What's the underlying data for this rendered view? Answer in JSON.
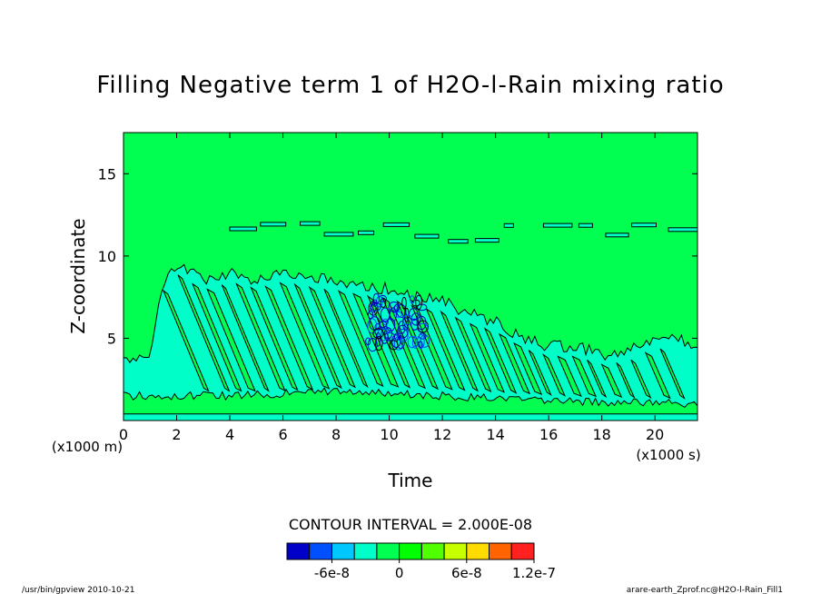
{
  "chart_data": {
    "type": "heatmap",
    "title": "Filling Negative term 1 of H2O-l-Rain mixing ratio",
    "xlabel": "Time",
    "ylabel": "Z-coordinate",
    "x_unit_label": "(x1000 s)",
    "y_unit_label": "(x1000 m)",
    "xlim": [
      0,
      21.6
    ],
    "ylim": [
      0,
      17.5
    ],
    "x_ticks": [
      0,
      2,
      4,
      6,
      8,
      10,
      12,
      14,
      16,
      18,
      20
    ],
    "y_ticks": [
      5,
      10,
      15
    ],
    "contour_interval_text": "CONTOUR INTERVAL = 2.000E-08",
    "colorbar": {
      "bins": [
        -1e-07,
        -8e-08,
        -6e-08,
        -4e-08,
        -2e-08,
        0,
        2e-08,
        4e-08,
        6e-08,
        8e-08,
        1e-07,
        1.2e-07
      ],
      "colors": [
        "#0000c8",
        "#0050ff",
        "#00c8ff",
        "#00ffc8",
        "#00ff50",
        "#00ff00",
        "#50ff00",
        "#c8ff00",
        "#ffdc00",
        "#ff6400",
        "#ff2020"
      ],
      "tick_labels": [
        "-6e-8",
        "0",
        "6e-8",
        "1.2e-7"
      ],
      "tick_values": [
        -6e-08,
        0,
        6e-08,
        1.2e-07
      ]
    },
    "background_color": "#00ff50",
    "band_color": "#00ffc8",
    "negative_region": {
      "upper_envelope": [
        [
          0,
          3.6
        ],
        [
          1.0,
          4.2
        ],
        [
          1.5,
          8.5
        ],
        [
          2.0,
          9.5
        ],
        [
          3.0,
          8.5
        ],
        [
          4.0,
          9.0
        ],
        [
          5.0,
          8.6
        ],
        [
          6.0,
          9.0
        ],
        [
          7.0,
          8.7
        ],
        [
          8.0,
          8.5
        ],
        [
          9.0,
          8.2
        ],
        [
          10.0,
          8.0
        ],
        [
          11.0,
          7.5
        ],
        [
          12.0,
          7.2
        ],
        [
          13.0,
          6.5
        ],
        [
          14.0,
          6.0
        ],
        [
          15.0,
          5.0
        ],
        [
          16.0,
          4.5
        ],
        [
          17.0,
          4.5
        ],
        [
          18.0,
          4.0
        ],
        [
          19.0,
          4.2
        ],
        [
          20.0,
          5.0
        ],
        [
          21.0,
          4.8
        ],
        [
          21.6,
          4.5
        ]
      ],
      "layer_base": [
        [
          0,
          1.5
        ],
        [
          4.0,
          1.5
        ],
        [
          8.0,
          1.8
        ],
        [
          12.0,
          1.5
        ],
        [
          16.0,
          1.2
        ],
        [
          21.6,
          1.0
        ]
      ]
    },
    "streak_band": {
      "x0": 1.5,
      "x1": 20.5,
      "slope_km_per_kS": -2.4,
      "spacing_kS": 0.55
    },
    "strong_negative_cluster": {
      "x0": 9.2,
      "x1": 11.4,
      "y0": 4.5,
      "y1": 7.5
    },
    "upper_patches": {
      "level_km": 11.6,
      "x_start": 4.0,
      "x_end": 21.6
    },
    "lower_left_label": "/usr/bin/gpview   2010-10-21",
    "lower_right_label": "arare-earth_Zprof.nc@H2O-l-Rain_Fill1"
  }
}
